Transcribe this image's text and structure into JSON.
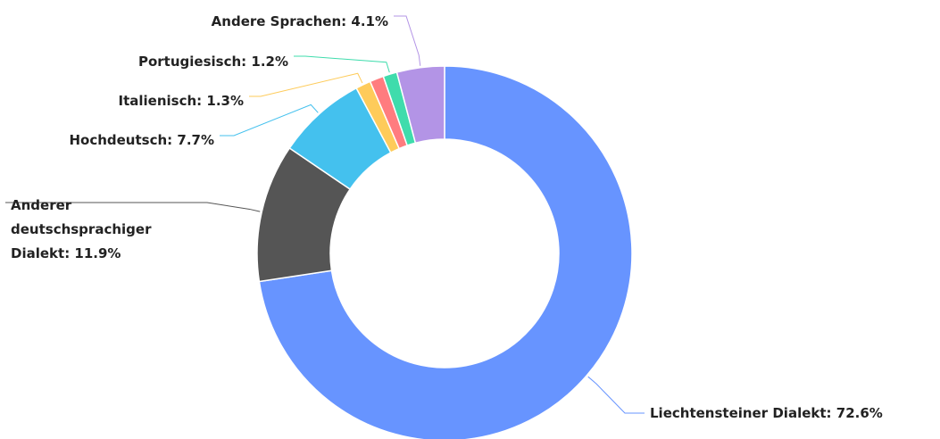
{
  "chart_data": {
    "type": "donut",
    "categories": [
      "Liechtensteiner Dialekt",
      "Anderer deutschsprachiger Dialekt",
      "Hochdeutsch",
      "Italienisch",
      null,
      "Portugiesisch",
      "Andere Sprachen"
    ],
    "values": [
      72.6,
      11.9,
      7.7,
      1.3,
      1.2,
      1.2,
      4.1
    ],
    "value_labels": [
      "72.6%",
      "11.9%",
      "7.7%",
      "1.3%",
      null,
      "1.2%",
      "4.1%"
    ],
    "label_separator": ": ",
    "colors": [
      "#6794ff",
      "#555555",
      "#44c1ee",
      "#fecb5a",
      "#ff7c7f",
      "#3fdcac",
      "#b394e6"
    ]
  }
}
